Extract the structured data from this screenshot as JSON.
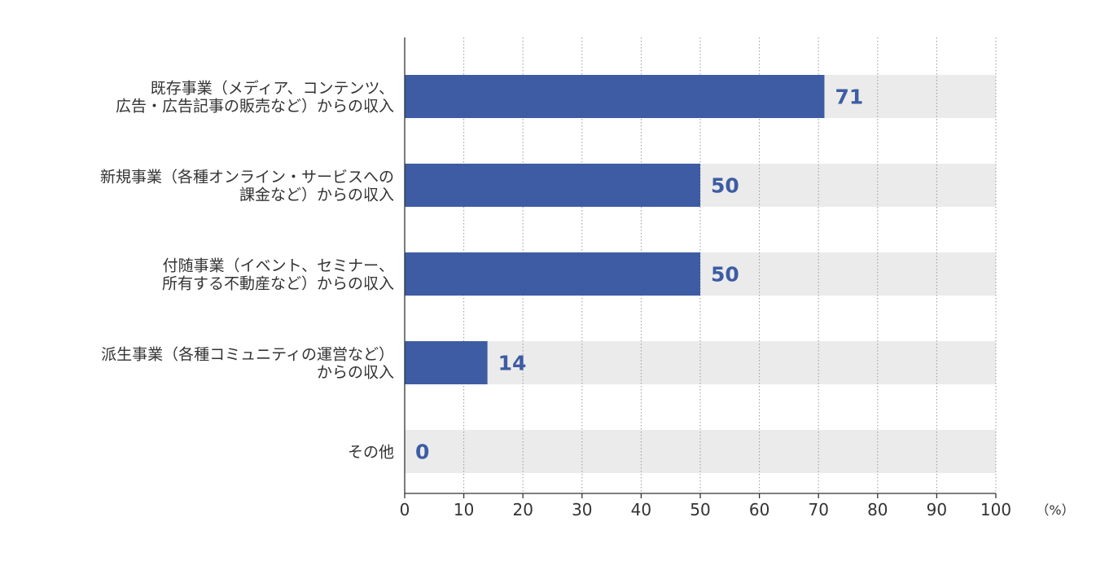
{
  "chart_data": {
    "type": "bar",
    "orientation": "horizontal",
    "categories": [
      [
        "既存事業（メディア、コンテンツ、",
        "広告・広告記事の販売など）からの収入"
      ],
      [
        "新規事業（各種オンライン・サービスへの",
        "課金など）からの収入"
      ],
      [
        "付随事業（イベント、セミナー、",
        "所有する不動産など）からの収入"
      ],
      [
        "派生事業（各種コミュニティの運営など）",
        "からの収入"
      ],
      [
        "その他"
      ]
    ],
    "values": [
      71,
      50,
      50,
      14,
      0
    ],
    "data_labels": [
      "71",
      "50",
      "50",
      "14",
      "0"
    ],
    "xlim": [
      0,
      100
    ],
    "x_ticks": [
      0,
      10,
      20,
      30,
      40,
      50,
      60,
      70,
      80,
      90,
      100
    ],
    "x_unit": "（%）",
    "grid": true,
    "legend": "none",
    "colors": {
      "bar": "#3D5CA3",
      "track": "#EBEBEB",
      "label": "#3D5CA3",
      "text": "#333333",
      "grid": "#999999",
      "axis": "#333333"
    }
  }
}
